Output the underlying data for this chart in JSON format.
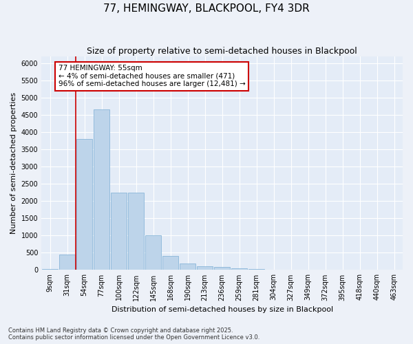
{
  "title": "77, HEMINGWAY, BLACKPOOL, FY4 3DR",
  "subtitle": "Size of property relative to semi-detached houses in Blackpool",
  "xlabel": "Distribution of semi-detached houses by size in Blackpool",
  "ylabel": "Number of semi-detached properties",
  "categories": [
    "9sqm",
    "31sqm",
    "54sqm",
    "77sqm",
    "100sqm",
    "122sqm",
    "145sqm",
    "168sqm",
    "190sqm",
    "213sqm",
    "236sqm",
    "259sqm",
    "281sqm",
    "304sqm",
    "327sqm",
    "349sqm",
    "372sqm",
    "395sqm",
    "418sqm",
    "440sqm",
    "463sqm"
  ],
  "values": [
    30,
    450,
    3800,
    4650,
    2250,
    2250,
    1000,
    400,
    190,
    110,
    80,
    50,
    20,
    5,
    2,
    1,
    1,
    1,
    1,
    1,
    1
  ],
  "bar_color": "#bdd4ea",
  "bar_edge_color": "#7aadd4",
  "vline_color": "#cc0000",
  "vline_pos": 1.5,
  "annotation_text": "77 HEMINGWAY: 55sqm\n← 4% of semi-detached houses are smaller (471)\n96% of semi-detached houses are larger (12,481) →",
  "ylim": [
    0,
    6200
  ],
  "yticks": [
    0,
    500,
    1000,
    1500,
    2000,
    2500,
    3000,
    3500,
    4000,
    4500,
    5000,
    5500,
    6000
  ],
  "footer_line1": "Contains HM Land Registry data © Crown copyright and database right 2025.",
  "footer_line2": "Contains public sector information licensed under the Open Government Licence v3.0.",
  "bg_color": "#edf1f8",
  "plot_bg_color": "#e4ecf7",
  "grid_color": "#ffffff",
  "title_fontsize": 11,
  "subtitle_fontsize": 9,
  "axis_label_fontsize": 8,
  "tick_fontsize": 7,
  "annotation_fontsize": 7.5,
  "footer_fontsize": 6
}
